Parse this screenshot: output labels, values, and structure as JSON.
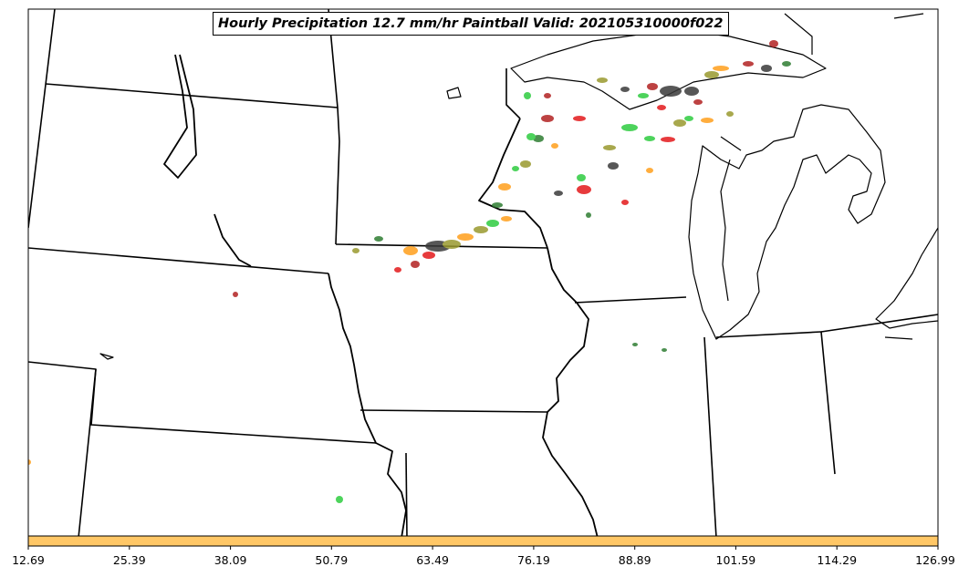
{
  "title": "Hourly Precipitation 12.7 mm/hr Paintball Valid: 202105310000f022",
  "colorbar": {
    "color": "#FFC766",
    "ticks": [
      "12.69",
      "25.39",
      "38.09",
      "50.79",
      "63.49",
      "76.19",
      "88.89",
      "101.59",
      "114.29",
      "126.99"
    ]
  },
  "colors": {
    "border": "#000000",
    "paint_red": "#E31A1C",
    "paint_darkred": "#B22222",
    "paint_orange": "#FF9F1C",
    "paint_green": "#2ECC40",
    "paint_darkgreen": "#2E7D32",
    "paint_olive": "#9A9A2E",
    "paint_gray": "#3A3A3A"
  }
}
